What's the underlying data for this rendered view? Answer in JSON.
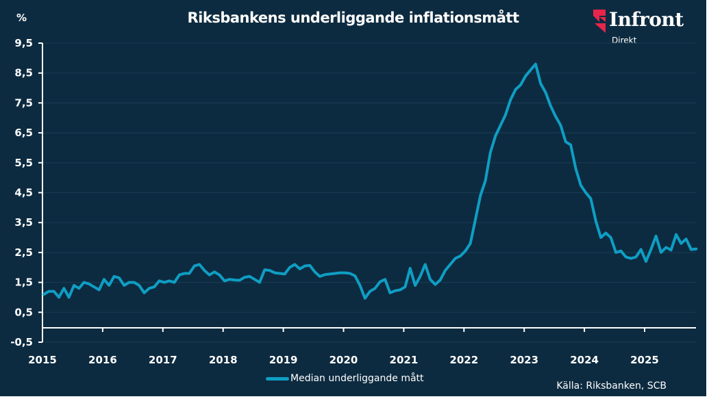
{
  "header": {
    "title": "Riksbankens underliggande inflationsmått",
    "unit": "%"
  },
  "logo": {
    "name": "Infront",
    "sub": "Direkt",
    "accent_color": "#e8254a"
  },
  "footer": {
    "legend_label": "Median underliggande mått",
    "source": "Källa: Riksbanken, SCB"
  },
  "colors": {
    "background": "#0d2b40",
    "line": "#0f9ec4",
    "grid": "#163a52",
    "axis": "#ffffff"
  },
  "chart_data": {
    "type": "line",
    "title": "Riksbankens underliggande inflationsmått",
    "ylabel": "%",
    "xlabel": "",
    "ylim": [
      -0.5,
      9.5
    ],
    "yticks": [
      "9,5",
      "8,5",
      "7,5",
      "6,5",
      "5,5",
      "4,5",
      "3,5",
      "2,5",
      "1,5",
      "0,5",
      "-0,5"
    ],
    "ytick_values": [
      9.5,
      8.5,
      7.5,
      6.5,
      5.5,
      4.5,
      3.5,
      2.5,
      1.5,
      0.5,
      -0.5
    ],
    "xticks": [
      "2015",
      "2016",
      "2017",
      "2018",
      "2019",
      "2020",
      "2021",
      "2022",
      "2023",
      "2024",
      "2025"
    ],
    "x_start": "2015-01",
    "x_frequency": "monthly",
    "xlim_years": [
      2015,
      2025.85
    ],
    "grid": true,
    "legend": "bottom-center",
    "series": [
      {
        "name": "Median underliggande mått",
        "values": [
          1.1,
          1.2,
          1.2,
          1.0,
          1.3,
          1.0,
          1.4,
          1.3,
          1.5,
          1.45,
          1.35,
          1.25,
          1.6,
          1.4,
          1.7,
          1.65,
          1.4,
          1.5,
          1.5,
          1.4,
          1.15,
          1.3,
          1.35,
          1.55,
          1.5,
          1.55,
          1.5,
          1.75,
          1.8,
          1.8,
          2.05,
          2.1,
          1.9,
          1.75,
          1.85,
          1.75,
          1.55,
          1.6,
          1.58,
          1.57,
          1.67,
          1.7,
          1.6,
          1.5,
          1.92,
          1.9,
          1.82,
          1.8,
          1.78,
          2.0,
          2.1,
          1.95,
          2.05,
          2.07,
          1.85,
          1.7,
          1.76,
          1.78,
          1.8,
          1.82,
          1.82,
          1.8,
          1.72,
          1.4,
          0.97,
          1.2,
          1.3,
          1.52,
          1.6,
          1.15,
          1.22,
          1.25,
          1.35,
          1.97,
          1.4,
          1.7,
          2.1,
          1.6,
          1.43,
          1.58,
          1.9,
          2.1,
          2.3,
          2.38,
          2.55,
          2.8,
          3.6,
          4.4,
          4.9,
          5.85,
          6.4,
          6.75,
          7.1,
          7.6,
          7.95,
          8.1,
          8.4,
          8.6,
          8.8,
          8.15,
          7.85,
          7.4,
          7.05,
          6.75,
          6.2,
          6.1,
          5.3,
          4.75,
          4.5,
          4.3,
          3.55,
          3.0,
          3.15,
          3.0,
          2.5,
          2.55,
          2.35,
          2.3,
          2.35,
          2.6,
          2.2,
          2.6,
          3.05,
          2.5,
          2.67,
          2.58,
          3.1,
          2.8,
          2.95,
          2.6,
          2.62
        ]
      }
    ]
  }
}
